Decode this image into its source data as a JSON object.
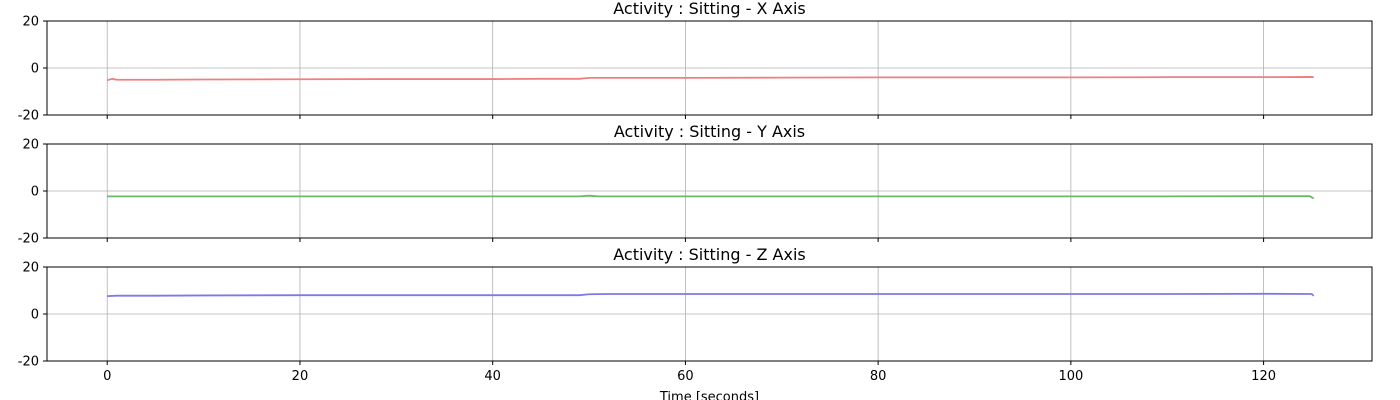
{
  "chart_data": [
    {
      "type": "line",
      "title": "Activity : Sitting - X Axis",
      "xlim": [
        -6.25,
        131.25
      ],
      "ylim": [
        -20,
        20
      ],
      "x_ticks": [
        0,
        20,
        40,
        60,
        80,
        100,
        120
      ],
      "y_ticks": [
        -20,
        0,
        20
      ],
      "grid": true,
      "xticklabels_visible": false,
      "xlabel": "",
      "series": [
        {
          "color": "#f08080",
          "x": [
            0,
            0.5,
            1,
            5,
            10,
            20,
            30,
            40,
            45,
            49,
            50,
            55,
            60,
            70,
            80,
            90,
            100,
            110,
            120,
            125,
            125.2
          ],
          "y": [
            -5.2,
            -4.6,
            -5.0,
            -5.0,
            -4.9,
            -4.8,
            -4.7,
            -4.7,
            -4.6,
            -4.6,
            -4.2,
            -4.2,
            -4.2,
            -4.1,
            -4.0,
            -4.0,
            -4.0,
            -3.9,
            -3.9,
            -3.8,
            -3.9
          ]
        }
      ]
    },
    {
      "type": "line",
      "title": "Activity : Sitting - Y Axis",
      "xlim": [
        -6.25,
        131.25
      ],
      "ylim": [
        -20,
        20
      ],
      "x_ticks": [
        0,
        20,
        40,
        60,
        80,
        100,
        120
      ],
      "y_ticks": [
        -20,
        0,
        20
      ],
      "grid": true,
      "xticklabels_visible": false,
      "xlabel": "",
      "series": [
        {
          "color": "#6ab86a",
          "x": [
            0,
            10,
            20,
            30,
            40,
            49,
            50,
            51,
            60,
            70,
            80,
            90,
            100,
            110,
            120,
            124.8,
            125.2
          ],
          "y": [
            -2.3,
            -2.3,
            -2.3,
            -2.3,
            -2.3,
            -2.3,
            -2.0,
            -2.3,
            -2.3,
            -2.3,
            -2.3,
            -2.3,
            -2.3,
            -2.3,
            -2.2,
            -2.2,
            -3.2
          ]
        }
      ]
    },
    {
      "type": "line",
      "title": "Activity : Sitting - Z Axis",
      "xlim": [
        -6.25,
        131.25
      ],
      "ylim": [
        -20,
        20
      ],
      "x_ticks": [
        0,
        20,
        40,
        60,
        80,
        100,
        120
      ],
      "y_ticks": [
        -20,
        0,
        20
      ],
      "grid": true,
      "xticklabels_visible": true,
      "xlabel": "Time [seconds]",
      "series": [
        {
          "color": "#7b7be8",
          "x": [
            0,
            1,
            5,
            10,
            20,
            30,
            40,
            49,
            50,
            52,
            60,
            70,
            80,
            90,
            100,
            110,
            120,
            125,
            125.2
          ],
          "y": [
            7.6,
            7.8,
            7.8,
            7.9,
            8.0,
            8.0,
            8.0,
            8.0,
            8.4,
            8.5,
            8.5,
            8.5,
            8.5,
            8.5,
            8.5,
            8.5,
            8.6,
            8.5,
            7.7
          ]
        }
      ]
    }
  ]
}
